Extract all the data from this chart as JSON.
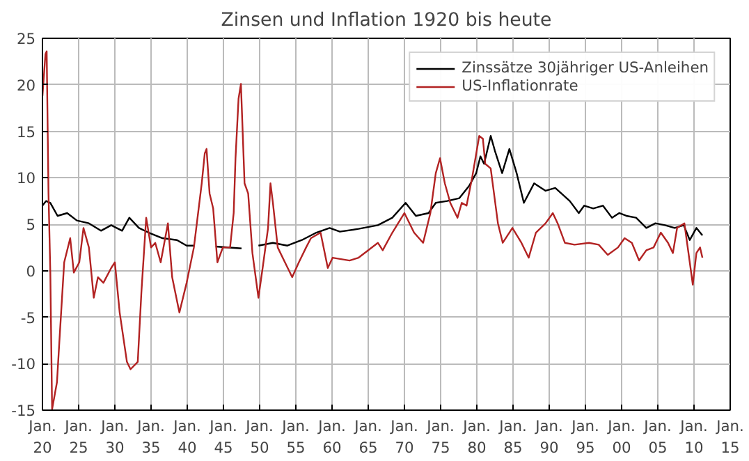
{
  "chart_data": {
    "type": "line",
    "title": "Zinsen und Inflation 1920 bis heute",
    "xlim": [
      "1920-01",
      "2015-01"
    ],
    "xticks": [
      {
        "value": "1920-01",
        "label": "Jan.\n20"
      },
      {
        "value": "1925-01",
        "label": "Jan.\n25"
      },
      {
        "value": "1930-01",
        "label": "Jan.\n30"
      },
      {
        "value": "1935-01",
        "label": "Jan.\n35"
      },
      {
        "value": "1940-01",
        "label": "Jan.\n40"
      },
      {
        "value": "1945-01",
        "label": "Jan.\n45"
      },
      {
        "value": "1950-01",
        "label": "Jan.\n50"
      },
      {
        "value": "1955-01",
        "label": "Jan.\n55"
      },
      {
        "value": "1960-01",
        "label": "Jan.\n60"
      },
      {
        "value": "1965-01",
        "label": "Jan.\n65"
      },
      {
        "value": "1970-01",
        "label": "Jan.\n70"
      },
      {
        "value": "1975-01",
        "label": "Jan.\n75"
      },
      {
        "value": "1980-01",
        "label": "Jan.\n80"
      },
      {
        "value": "1985-01",
        "label": "Jan.\n85"
      },
      {
        "value": "1990-01",
        "label": "Jan.\n90"
      },
      {
        "value": "1995-01",
        "label": "Jan.\n95"
      },
      {
        "value": "2000-01",
        "label": "Jan.\n00"
      },
      {
        "value": "2005-01",
        "label": "Jan.\n05"
      },
      {
        "value": "2010-01",
        "label": "Jan.\n10"
      },
      {
        "value": "2015-01",
        "label": "Jan.\n15"
      }
    ],
    "ylim": [
      -15,
      25
    ],
    "yticks": [
      -15,
      -10,
      -5,
      0,
      5,
      10,
      15,
      20,
      25
    ],
    "grid": true,
    "legend": "top right",
    "line_style": "solid",
    "series": [
      {
        "name": "Zinssätze 30jähriger US-Anleihen",
        "color": "#000000",
        "x": [
          "1920-01",
          "1920-07",
          "1921-02",
          "1922-02",
          "1923-06",
          "1924-10",
          "1926-06",
          "1928-02",
          "1929-07",
          "1931-01",
          "1932-01",
          "1933-05",
          "1934-09",
          "1936-08",
          "1938-08",
          "1939-12",
          "1940-12",
          "1942-06",
          "1943-12",
          "1947-07",
          "1948-08",
          "1949-11",
          "1951-11",
          "1953-11",
          "1955-11",
          "1957-11",
          "1959-09",
          "1961-02",
          "1963-09",
          "1966-05",
          "1968-05",
          "1970-03",
          "1971-08",
          "1973-05",
          "1974-05",
          "1975-12",
          "1977-08",
          "1978-12",
          "1979-12",
          "1980-07",
          "1981-01",
          "1981-12",
          "1982-07",
          "1983-07",
          "1984-07",
          "1985-07",
          "1986-07",
          "1987-12",
          "1989-07",
          "1990-11",
          "1992-11",
          "1994-02",
          "1994-11",
          "1996-02",
          "1997-06",
          "1998-09",
          "1999-09",
          "2000-09",
          "2002-01",
          "2003-06",
          "2004-09",
          "2006-01",
          "2007-05",
          "2008-08",
          "2009-06",
          "2010-05",
          "2011-03"
        ],
        "values": [
          7.0,
          7.5,
          7.3,
          5.9,
          6.2,
          5.4,
          5.1,
          4.3,
          4.9,
          4.3,
          5.7,
          4.6,
          4.1,
          3.5,
          3.3,
          2.7,
          2.7,
          null,
          2.6,
          2.4,
          null,
          2.7,
          3.0,
          2.7,
          3.3,
          4.1,
          4.6,
          4.2,
          4.5,
          4.9,
          5.7,
          7.3,
          5.9,
          6.2,
          7.3,
          7.5,
          7.8,
          9.1,
          10.5,
          12.3,
          11.5,
          14.5,
          12.9,
          10.5,
          13.1,
          10.5,
          7.3,
          9.4,
          8.6,
          8.9,
          7.5,
          6.2,
          7.0,
          6.7,
          7.0,
          5.7,
          6.2,
          5.9,
          5.7,
          4.6,
          5.1,
          4.9,
          4.6,
          4.9,
          3.3,
          4.6,
          3.8
        ]
      },
      {
        "name": "US-Inflationrate",
        "color": "#b22222",
        "x": [
          "1920-01",
          "1920-06",
          "1920-08",
          "1920-11",
          "1921-02",
          "1921-05",
          "1922-01",
          "1922-06",
          "1923-01",
          "1923-11",
          "1924-05",
          "1925-02",
          "1925-09",
          "1926-06",
          "1927-02",
          "1927-09",
          "1928-06",
          "1929-07",
          "1930-01",
          "1930-09",
          "1931-09",
          "1932-03",
          "1933-03",
          "1933-09",
          "1934-05",
          "1935-01",
          "1935-08",
          "1936-05",
          "1937-05",
          "1937-12",
          "1938-12",
          "1939-12",
          "1940-12",
          "1942-01",
          "1942-06",
          "1942-09",
          "1943-02",
          "1943-08",
          "1944-03",
          "1944-12",
          "1945-12",
          "1946-06",
          "1946-09",
          "1947-02",
          "1947-06",
          "1947-12",
          "1948-06",
          "1949-01",
          "1949-11",
          "1950-06",
          "1951-03",
          "1951-07",
          "1951-11",
          "1952-07",
          "1953-07",
          "1954-07",
          "1955-06",
          "1956-06",
          "1957-02",
          "1958-06",
          "1959-06",
          "1960-02",
          "1962-06",
          "1963-09",
          "1966-05",
          "1967-01",
          "1968-05",
          "1970-01",
          "1971-05",
          "1972-08",
          "1973-08",
          "1974-05",
          "1974-12",
          "1975-08",
          "1976-05",
          "1977-05",
          "1977-12",
          "1978-08",
          "1979-05",
          "1980-05",
          "1980-11",
          "1981-03",
          "1981-12",
          "1982-12",
          "1983-08",
          "1984-12",
          "1986-03",
          "1987-03",
          "1988-03",
          "1989-07",
          "1990-07",
          "1991-03",
          "1992-03",
          "1993-07",
          "1995-07",
          "1996-11",
          "1998-02",
          "1999-07",
          "2000-06",
          "2001-06",
          "2002-06",
          "2003-06",
          "2004-06",
          "2005-06",
          "2006-06",
          "2007-02",
          "2007-09",
          "2008-09",
          "2009-06",
          "2009-11",
          "2010-05",
          "2010-11",
          "2011-03"
        ],
        "values": [
          18.8,
          23.3,
          23.6,
          8.3,
          -0.2,
          -14.9,
          -12,
          -6.6,
          0.9,
          3.5,
          -0.2,
          0.9,
          4.6,
          2.5,
          -2.9,
          -0.7,
          -1.3,
          0.3,
          0.9,
          -4.5,
          -9.8,
          -10.6,
          -9.8,
          -2.3,
          5.7,
          2.5,
          3.0,
          0.9,
          5.1,
          -0.7,
          -4.5,
          -1.3,
          2.5,
          9.4,
          12.6,
          13.1,
          8.3,
          6.7,
          0.9,
          2.5,
          2.5,
          6.2,
          12.1,
          18.5,
          20.1,
          9.4,
          8.3,
          1.9,
          -2.9,
          0.3,
          4.6,
          9.4,
          7.3,
          2.5,
          0.9,
          -0.7,
          0.9,
          2.5,
          3.5,
          4.1,
          0.3,
          1.4,
          1.1,
          1.4,
          3.0,
          2.2,
          4.1,
          6.2,
          4.1,
          3.0,
          6.2,
          10.5,
          12.1,
          9.4,
          7.3,
          5.7,
          7.3,
          7.0,
          9.9,
          14.5,
          14.2,
          11.5,
          11.0,
          5.1,
          3.0,
          4.6,
          3.0,
          1.4,
          4.1,
          5.1,
          6.2,
          5.1,
          3.0,
          2.8,
          3.0,
          2.8,
          1.7,
          2.5,
          3.5,
          3.0,
          1.1,
          2.2,
          2.5,
          4.1,
          3.0,
          1.9,
          4.6,
          5.1,
          0.9,
          -1.5,
          1.9,
          2.5,
          1.4
        ]
      }
    ]
  }
}
